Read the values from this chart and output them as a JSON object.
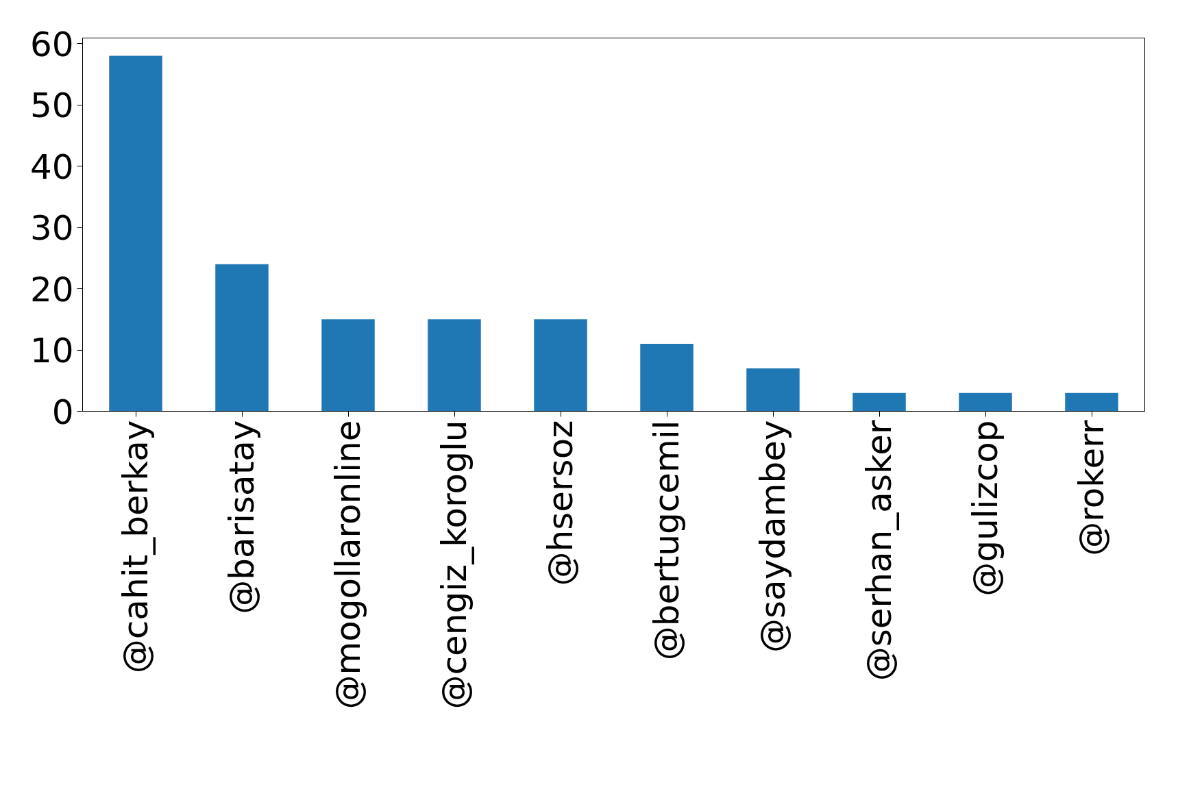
{
  "chart_data": {
    "type": "bar",
    "categories": [
      "@cahit_berkay",
      "@barisatay",
      "@mogollaronline",
      "@cengiz_koroglu",
      "@hsersoz",
      "@bertugcemil",
      "@saydambey",
      "@serhan_asker",
      "@gulizcop",
      "@rokerr"
    ],
    "values": [
      58,
      24,
      15,
      15,
      15,
      11,
      7,
      3,
      3,
      3
    ],
    "color": "#1f77b4",
    "ylim": [
      0,
      60.9
    ],
    "yticks": [
      0,
      10,
      20,
      30,
      40,
      50,
      60
    ],
    "grid": false
  }
}
